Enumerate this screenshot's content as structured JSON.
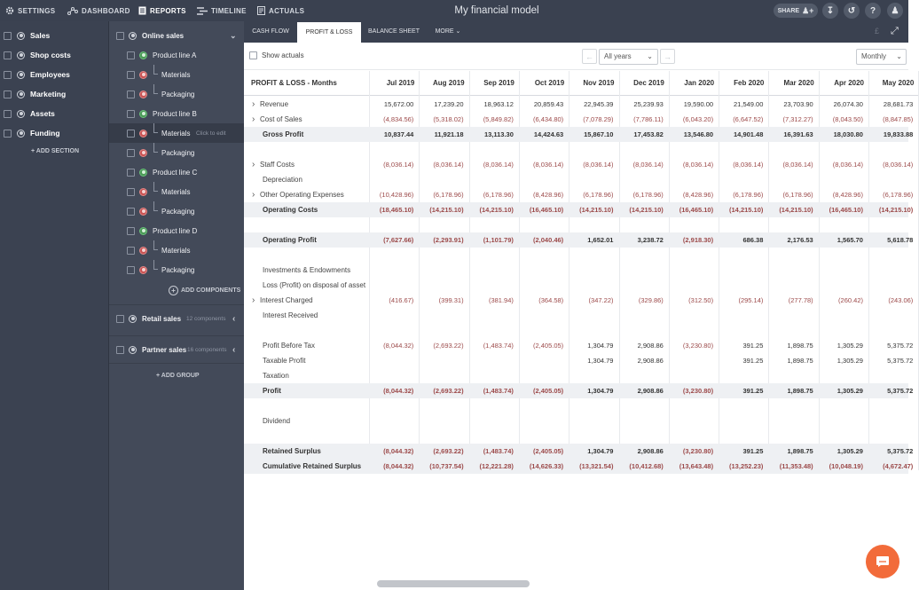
{
  "topnav": {
    "settings": "SETTINGS",
    "dashboard": "DASHBOARD",
    "reports": "REPORTS",
    "timeline": "TIMELINE",
    "actuals": "ACTUALS",
    "app_title": "My financial model",
    "share": "SHARE"
  },
  "sections": [
    {
      "label": "Sales"
    },
    {
      "label": "Shop costs"
    },
    {
      "label": "Employees"
    },
    {
      "label": "Marketing"
    },
    {
      "label": "Assets"
    },
    {
      "label": "Funding"
    }
  ],
  "add_section": "+ ADD SECTION",
  "sales_panel": {
    "group_online": "Online sales",
    "rows": [
      {
        "label": "Product line A",
        "type": "product",
        "status": "green"
      },
      {
        "label": "Materials",
        "type": "component",
        "status": "red"
      },
      {
        "label": "Packaging",
        "type": "component",
        "status": "red"
      },
      {
        "label": "Product line B",
        "type": "product",
        "status": "green"
      },
      {
        "label": "Materials",
        "type": "component",
        "status": "red",
        "hint": "Click to edit"
      },
      {
        "label": "Packaging",
        "type": "component",
        "status": "red"
      },
      {
        "label": "Product line C",
        "type": "product",
        "status": "green"
      },
      {
        "label": "Materials",
        "type": "component",
        "status": "red"
      },
      {
        "label": "Packaging",
        "type": "component",
        "status": "red"
      },
      {
        "label": "Product line D",
        "type": "product",
        "status": "green"
      },
      {
        "label": "Materials",
        "type": "component",
        "status": "red"
      },
      {
        "label": "Packaging",
        "type": "component",
        "status": "red"
      }
    ],
    "add_components": "ADD COMPONENTS",
    "retail": {
      "label": "Retail sales",
      "count": "12 components"
    },
    "partner": {
      "label": "Partner sales",
      "count": "16 components"
    },
    "add_group": "+ ADD GROUP"
  },
  "tabs": {
    "cash_flow": "CASH FLOW",
    "profit_loss": "PROFIT & LOSS",
    "balance_sheet": "BALANCE SHEET",
    "more": "MORE"
  },
  "toolbar": {
    "show_actuals": "Show actuals",
    "years_select": "All years",
    "period_select": "Monthly"
  },
  "table": {
    "title": "PROFIT & LOSS - Months",
    "months": [
      "Jul 2019",
      "Aug 2019",
      "Sep 2019",
      "Oct 2019",
      "Nov 2019",
      "Dec 2019",
      "Jan 2020",
      "Feb 2020",
      "Mar 2020",
      "Apr 2020",
      "May 2020"
    ],
    "rows": [
      {
        "label": "Revenue",
        "expand": true,
        "values": [
          "15,672.00",
          "17,239.20",
          "18,963.12",
          "20,859.43",
          "22,945.39",
          "25,239.93",
          "19,590.00",
          "21,549.00",
          "23,703.90",
          "26,074.30",
          "28,681.73"
        ]
      },
      {
        "label": "Cost of Sales",
        "expand": true,
        "values": [
          "(4,834.56)",
          "(5,318.02)",
          "(5,849.82)",
          "(6,434.80)",
          "(7,078.29)",
          "(7,786.11)",
          "(6,043.20)",
          "(6,647.52)",
          "(7,312.27)",
          "(8,043.50)",
          "(8,847.85)"
        ]
      },
      {
        "label": "Gross Profit",
        "bold": true,
        "shade": true,
        "values": [
          "10,837.44",
          "11,921.18",
          "13,113.30",
          "14,424.63",
          "15,867.10",
          "17,453.82",
          "13,546.80",
          "14,901.48",
          "16,391.63",
          "18,030.80",
          "19,833.88"
        ]
      },
      {
        "label": "",
        "values": [
          "",
          "",
          "",
          "",
          "",
          "",
          "",
          "",
          "",
          "",
          ""
        ]
      },
      {
        "label": "Staff Costs",
        "expand": true,
        "values": [
          "(8,036.14)",
          "(8,036.14)",
          "(8,036.14)",
          "(8,036.14)",
          "(8,036.14)",
          "(8,036.14)",
          "(8,036.14)",
          "(8,036.14)",
          "(8,036.14)",
          "(8,036.14)",
          "(8,036.14)"
        ]
      },
      {
        "label": "Depreciation",
        "values": [
          "",
          "",
          "",
          "",
          "",
          "",
          "",
          "",
          "",
          "",
          ""
        ]
      },
      {
        "label": "Other Operating Expenses",
        "expand": true,
        "values": [
          "(10,428.96)",
          "(6,178.96)",
          "(6,178.96)",
          "(8,428.96)",
          "(6,178.96)",
          "(6,178.96)",
          "(8,428.96)",
          "(6,178.96)",
          "(6,178.96)",
          "(8,428.96)",
          "(6,178.96)"
        ]
      },
      {
        "label": "Operating Costs",
        "bold": true,
        "shade": true,
        "values": [
          "(18,465.10)",
          "(14,215.10)",
          "(14,215.10)",
          "(16,465.10)",
          "(14,215.10)",
          "(14,215.10)",
          "(16,465.10)",
          "(14,215.10)",
          "(14,215.10)",
          "(16,465.10)",
          "(14,215.10)"
        ]
      },
      {
        "label": "",
        "values": [
          "",
          "",
          "",
          "",
          "",
          "",
          "",
          "",
          "",
          "",
          ""
        ]
      },
      {
        "label": "Operating Profit",
        "bold": true,
        "shade": true,
        "values": [
          "(7,627.66)",
          "(2,293.91)",
          "(1,101.79)",
          "(2,040.46)",
          "1,652.01",
          "3,238.72",
          "(2,918.30)",
          "686.38",
          "2,176.53",
          "1,565.70",
          "5,618.78"
        ]
      },
      {
        "label": "",
        "values": [
          "",
          "",
          "",
          "",
          "",
          "",
          "",
          "",
          "",
          "",
          ""
        ]
      },
      {
        "label": "Investments & Endowments",
        "values": [
          "",
          "",
          "",
          "",
          "",
          "",
          "",
          "",
          "",
          "",
          ""
        ]
      },
      {
        "label": "Loss (Profit) on disposal of asset",
        "values": [
          "",
          "",
          "",
          "",
          "",
          "",
          "",
          "",
          "",
          "",
          ""
        ]
      },
      {
        "label": "Interest Charged",
        "expand": true,
        "values": [
          "(416.67)",
          "(399.31)",
          "(381.94)",
          "(364.58)",
          "(347.22)",
          "(329.86)",
          "(312.50)",
          "(295.14)",
          "(277.78)",
          "(260.42)",
          "(243.06)"
        ]
      },
      {
        "label": "Interest Received",
        "values": [
          "",
          "",
          "",
          "",
          "",
          "",
          "",
          "",
          "",
          "",
          ""
        ]
      },
      {
        "label": "",
        "values": [
          "",
          "",
          "",
          "",
          "",
          "",
          "",
          "",
          "",
          "",
          ""
        ]
      },
      {
        "label": "Profit Before Tax",
        "values": [
          "(8,044.32)",
          "(2,693.22)",
          "(1,483.74)",
          "(2,405.05)",
          "1,304.79",
          "2,908.86",
          "(3,230.80)",
          "391.25",
          "1,898.75",
          "1,305.29",
          "5,375.72"
        ]
      },
      {
        "label": "Taxable Profit",
        "values": [
          "",
          "",
          "",
          "",
          "1,304.79",
          "2,908.86",
          "",
          "391.25",
          "1,898.75",
          "1,305.29",
          "5,375.72"
        ]
      },
      {
        "label": "Taxation",
        "values": [
          "",
          "",
          "",
          "",
          "",
          "",
          "",
          "",
          "",
          "",
          ""
        ]
      },
      {
        "label": "Profit",
        "bold": true,
        "shade": true,
        "values": [
          "(8,044.32)",
          "(2,693.22)",
          "(1,483.74)",
          "(2,405.05)",
          "1,304.79",
          "2,908.86",
          "(3,230.80)",
          "391.25",
          "1,898.75",
          "1,305.29",
          "5,375.72"
        ]
      },
      {
        "label": "",
        "values": [
          "",
          "",
          "",
          "",
          "",
          "",
          "",
          "",
          "",
          "",
          ""
        ]
      },
      {
        "label": "Dividend",
        "values": [
          "",
          "",
          "",
          "",
          "",
          "",
          "",
          "",
          "",
          "",
          ""
        ]
      },
      {
        "label": "",
        "values": [
          "",
          "",
          "",
          "",
          "",
          "",
          "",
          "",
          "",
          "",
          ""
        ]
      },
      {
        "label": "Retained Surplus",
        "bold": true,
        "shade": true,
        "values": [
          "(8,044.32)",
          "(2,693.22)",
          "(1,483.74)",
          "(2,405.05)",
          "1,304.79",
          "2,908.86",
          "(3,230.80)",
          "391.25",
          "1,898.75",
          "1,305.29",
          "5,375.72"
        ]
      },
      {
        "label": "Cumulative Retained Surplus",
        "bold": true,
        "shade": true,
        "values": [
          "(8,044.32)",
          "(10,737.54)",
          "(12,221.28)",
          "(14,626.33)",
          "(13,321.54)",
          "(10,412.68)",
          "(13,643.48)",
          "(13,252.23)",
          "(11,353.48)",
          "(10,048.19)",
          "(4,672.47)"
        ]
      }
    ]
  },
  "colors": {
    "topbar": "#3a4150",
    "sidebar": "#3b4251",
    "negative": "#9c4a4a",
    "chat_button": "#f26b3a"
  }
}
